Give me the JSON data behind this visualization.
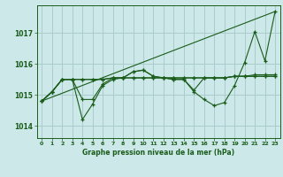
{
  "bg_color": "#cce8e8",
  "grid_color": "#aacccc",
  "line_color": "#1a5c1a",
  "title": "Graphe pression niveau de la mer (hPa)",
  "xlim": [
    -0.5,
    23.5
  ],
  "ylim": [
    1013.6,
    1017.9
  ],
  "yticks": [
    1014,
    1015,
    1016,
    1017
  ],
  "xticks": [
    0,
    1,
    2,
    3,
    4,
    5,
    6,
    7,
    8,
    9,
    10,
    11,
    12,
    13,
    14,
    15,
    16,
    17,
    18,
    19,
    20,
    21,
    22,
    23
  ],
  "line_trend": {
    "x": [
      0,
      23
    ],
    "y": [
      1014.8,
      1017.7
    ]
  },
  "line_main": {
    "x": [
      0,
      1,
      2,
      3,
      4,
      5,
      6,
      7,
      8,
      9,
      10,
      11,
      12,
      13,
      14,
      15,
      16,
      17,
      18,
      19,
      20,
      21,
      22,
      23
    ],
    "y": [
      1014.8,
      1015.1,
      1015.5,
      1015.5,
      1014.2,
      1014.7,
      1015.3,
      1015.5,
      1015.55,
      1015.75,
      1015.8,
      1015.6,
      1015.55,
      1015.5,
      1015.5,
      1015.1,
      1014.85,
      1014.65,
      1014.75,
      1015.3,
      1016.05,
      1017.05,
      1016.1,
      1017.7
    ]
  },
  "line_flat1": {
    "x": [
      0,
      1,
      2,
      3,
      4,
      5,
      6,
      7,
      8,
      9,
      10,
      11,
      12,
      13,
      14,
      15,
      16,
      17,
      18,
      19,
      20,
      21,
      22,
      23
    ],
    "y": [
      1014.8,
      1015.1,
      1015.5,
      1015.5,
      1015.5,
      1015.5,
      1015.5,
      1015.55,
      1015.55,
      1015.55,
      1015.55,
      1015.55,
      1015.55,
      1015.55,
      1015.55,
      1015.55,
      1015.55,
      1015.55,
      1015.55,
      1015.6,
      1015.6,
      1015.6,
      1015.6,
      1015.6
    ]
  },
  "line_flat2": {
    "x": [
      0,
      1,
      2,
      3,
      4,
      5,
      6,
      7,
      8,
      9,
      10,
      11,
      12,
      13,
      14,
      15,
      16,
      17,
      18,
      19,
      20,
      21,
      22,
      23
    ],
    "y": [
      1014.8,
      1015.1,
      1015.5,
      1015.5,
      1015.5,
      1015.5,
      1015.5,
      1015.55,
      1015.55,
      1015.55,
      1015.55,
      1015.55,
      1015.55,
      1015.55,
      1015.55,
      1015.55,
      1015.55,
      1015.55,
      1015.55,
      1015.6,
      1015.6,
      1015.65,
      1015.65,
      1015.65
    ]
  },
  "line_jagged": {
    "x": [
      0,
      1,
      2,
      3,
      4,
      5,
      6,
      7,
      8,
      9,
      10,
      11,
      12,
      13,
      14,
      15,
      16,
      17,
      18,
      19,
      20,
      21,
      22,
      23
    ],
    "y": [
      1014.8,
      1015.1,
      1015.5,
      1015.5,
      1014.85,
      1014.85,
      1015.35,
      1015.55,
      1015.55,
      1015.75,
      1015.8,
      1015.6,
      1015.55,
      1015.5,
      1015.5,
      1015.15,
      1015.55,
      1015.55,
      1015.55,
      1015.6,
      1015.6,
      1015.6,
      1015.6,
      1015.6
    ]
  }
}
